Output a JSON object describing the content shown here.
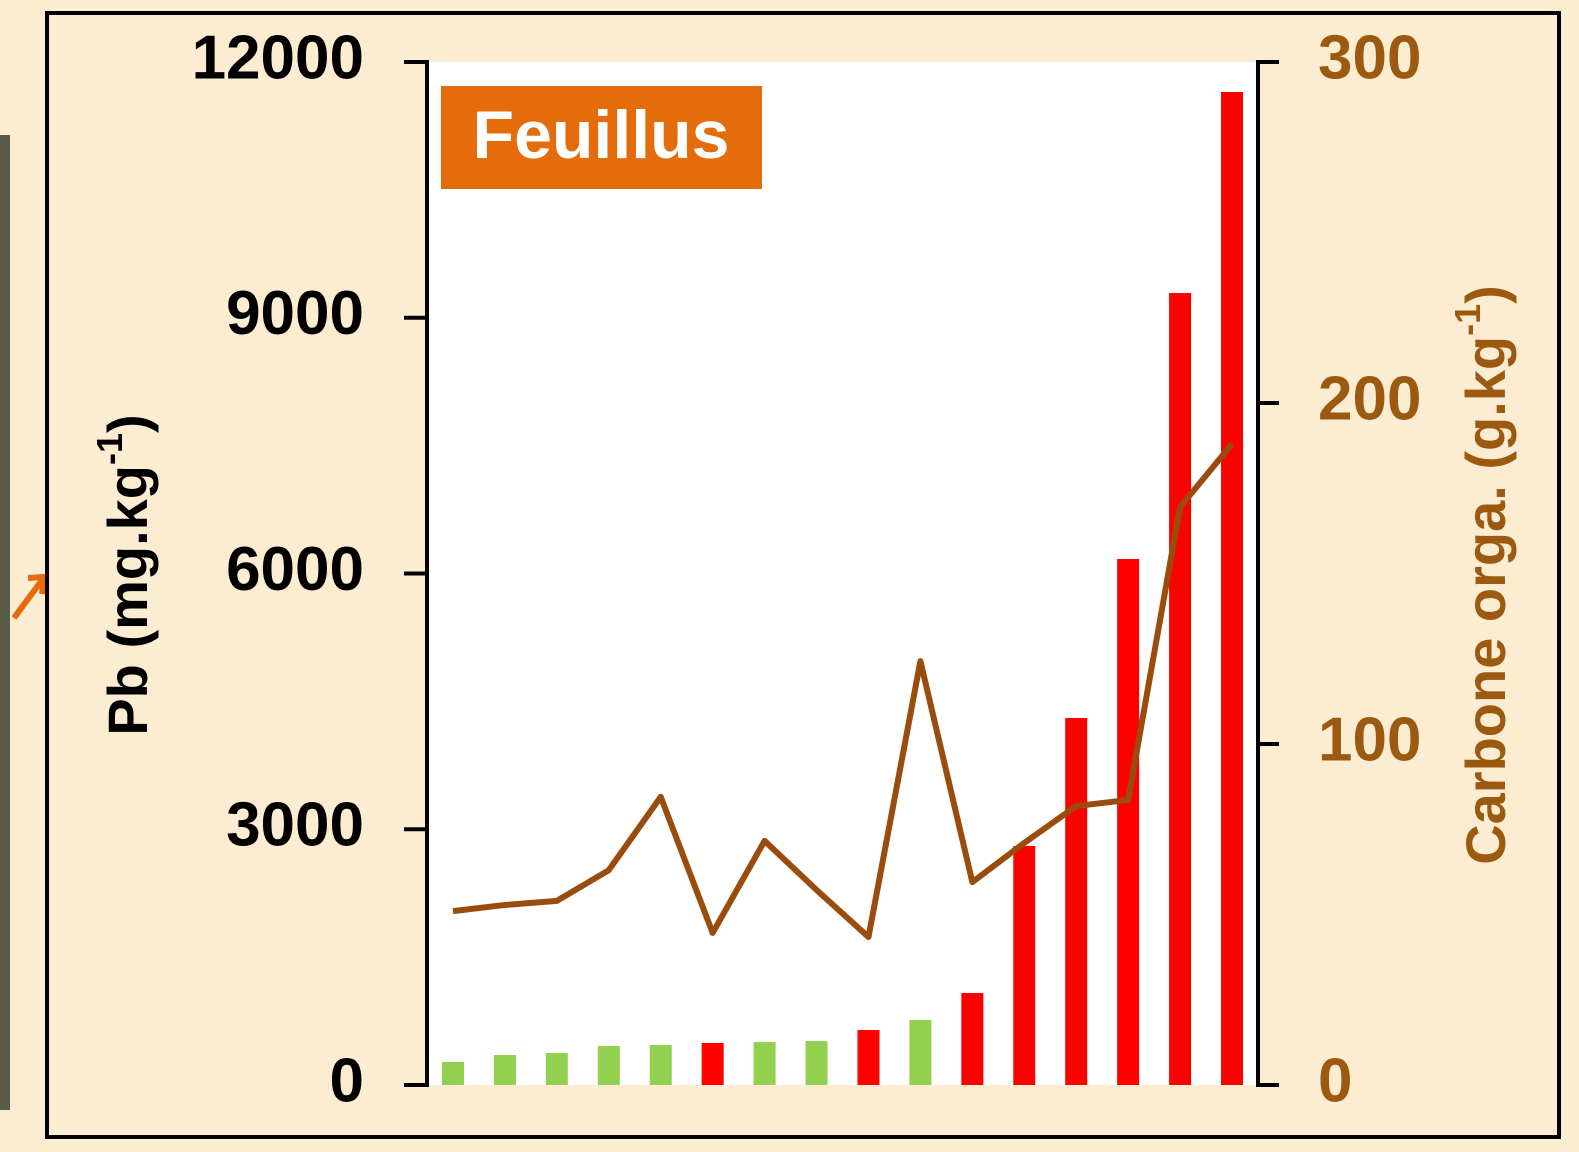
{
  "chart_data": {
    "type": "bar",
    "annotation": "Feuillus",
    "ylabel_parts": [
      "Pb (mg.kg",
      "-1",
      ")"
    ],
    "y2label_parts": [
      "Carbone orga. (g.kg",
      "-1",
      ")"
    ],
    "ylim": [
      0,
      12000
    ],
    "yticks": [
      0,
      3000,
      6000,
      9000,
      12000
    ],
    "y2lim": [
      0,
      300
    ],
    "y2ticks": [
      0,
      100,
      200,
      300
    ],
    "series": [
      {
        "type": "bar",
        "values": [
          270,
          352,
          375,
          457,
          469,
          493,
          504,
          516,
          645,
          762,
          1079,
          2804,
          4305,
          6170,
          9290,
          11648
        ],
        "colors": [
          "#92d050",
          "#92d050",
          "#92d050",
          "#92d050",
          "#92d050",
          "#ff0000",
          "#92d050",
          "#92d050",
          "#ff0000",
          "#92d050",
          "#ff0000",
          "#ff0000",
          "#ff0000",
          "#ff0000",
          "#ff0000",
          "#ff0000"
        ]
      },
      {
        "type": "line",
        "axis": "y2",
        "color": "#994c0c",
        "values": [
          51.0,
          52.8,
          54.0,
          63.0,
          84.5,
          44.6,
          71.6,
          57.2,
          43.4,
          124.3,
          59.5,
          71.0,
          81.8,
          83.6,
          169.5,
          188.0
        ]
      }
    ]
  }
}
